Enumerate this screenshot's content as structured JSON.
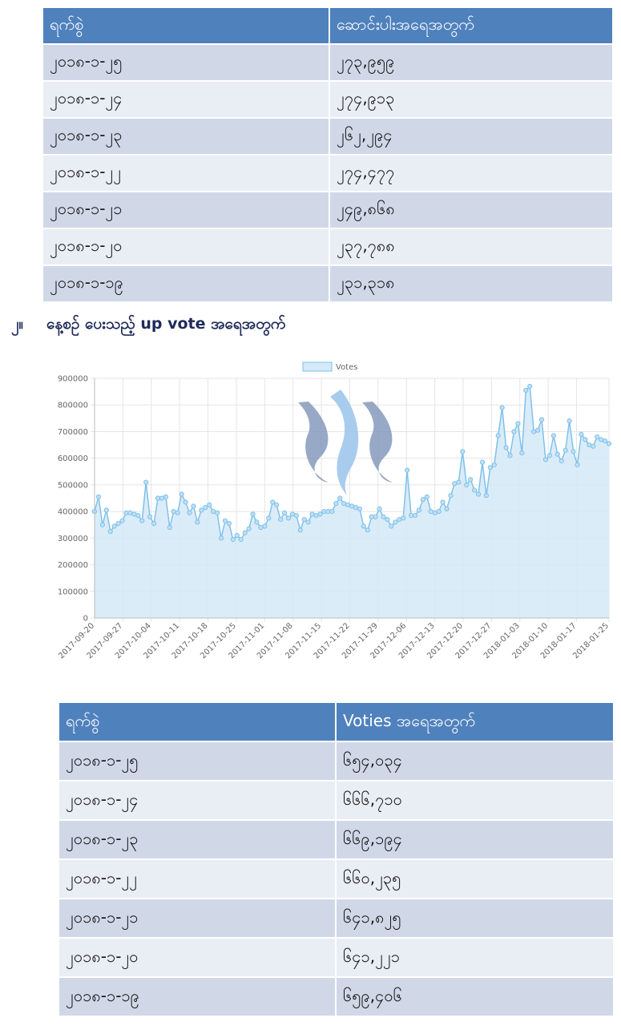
{
  "table1": {
    "headers": [
      "ရက်စွဲ",
      "ဆောင်းပါးအရေအတွက်"
    ],
    "rows": [
      [
        "၂၀၁၈-၁-၂၅",
        "၂၇၃,၉၅၉"
      ],
      [
        "၂၀၁၈-၁-၂၄",
        "၂၇၄,၉၁၃"
      ],
      [
        "၂၀၁၈-၁-၂၃",
        "၂၆၂,၂၉၄"
      ],
      [
        "၂၀၁၈-၁-၂၂",
        "၂၇၄,၄၇၇"
      ],
      [
        "၂၀၁၈-၁-၂၁",
        "၂၄၉,၈၆၈"
      ],
      [
        "၂၀၁၈-၁-၂၀",
        "၂၃၇,၇၈၈"
      ],
      [
        "၂၀၁၈-၁-၁၉",
        "၂၃၁,၃၁၈"
      ]
    ]
  },
  "section2": {
    "number": "၂။",
    "title": "နေ့စဉ် ပေးသည့် up vote အရေအတွက်"
  },
  "chart_data": {
    "type": "area",
    "series": [
      {
        "name": "Votes",
        "color": "#7ec1ea",
        "fill": "#d5e9f8"
      }
    ],
    "x_tick_labels": [
      "2017-09-20",
      "2017-09-27",
      "2017-10-04",
      "2017-10-11",
      "2017-10-18",
      "2017-10-25",
      "2017-11-01",
      "2017-11-08",
      "2017-11-15",
      "2017-11-22",
      "2017-11-29",
      "2017-12-06",
      "2017-12-13",
      "2017-12-20",
      "2017-12-27",
      "2018-01-03",
      "2018-01-10",
      "2018-01-17",
      "2018-01-25"
    ],
    "x_start": "2017-09-20",
    "x_end": "2018-01-25",
    "ylim": [
      0,
      900000
    ],
    "y_ticks": [
      0,
      100000,
      200000,
      300000,
      400000,
      500000,
      600000,
      700000,
      800000,
      900000
    ],
    "grid": true,
    "legend_position": "top-center",
    "values": [
      400000,
      455000,
      350000,
      405000,
      325000,
      345000,
      355000,
      365000,
      395000,
      395000,
      390000,
      385000,
      365000,
      510000,
      380000,
      355000,
      450000,
      450000,
      455000,
      340000,
      400000,
      395000,
      465000,
      435000,
      395000,
      420000,
      360000,
      405000,
      415000,
      425000,
      400000,
      395000,
      300000,
      365000,
      355000,
      295000,
      310000,
      295000,
      320000,
      335000,
      390000,
      360000,
      340000,
      345000,
      375000,
      435000,
      425000,
      370000,
      395000,
      375000,
      390000,
      385000,
      330000,
      370000,
      360000,
      390000,
      385000,
      390000,
      400000,
      400000,
      400000,
      430000,
      450000,
      430000,
      425000,
      420000,
      415000,
      410000,
      345000,
      330000,
      380000,
      380000,
      410000,
      380000,
      370000,
      345000,
      360000,
      370000,
      375000,
      555000,
      385000,
      385000,
      405000,
      445000,
      455000,
      400000,
      395000,
      400000,
      435000,
      410000,
      460000,
      505000,
      510000,
      625000,
      500000,
      520000,
      480000,
      465000,
      585000,
      460000,
      565000,
      575000,
      685000,
      790000,
      640000,
      610000,
      700000,
      730000,
      620000,
      855000,
      870000,
      700000,
      705000,
      745000,
      595000,
      610000,
      685000,
      615000,
      590000,
      630000,
      740000,
      625000,
      575000,
      690000,
      670000,
      650000,
      645000,
      680000,
      670000,
      665000,
      655000
    ]
  },
  "table2": {
    "headers": [
      "ရက်စွဲ",
      "Voties အရေအတွက်"
    ],
    "rows": [
      [
        "၂၀၁၈-၁-၂၅",
        "၆၅၄,၀၃၄"
      ],
      [
        "၂၀၁၈-၁-၂၄",
        "၆၆၆,၇၁၀"
      ],
      [
        "၂၀၁၈-၁-၂၃",
        "၆၆၉,၁၉၄"
      ],
      [
        "၂၀၁၈-၁-၂၂",
        "၆၆၀,၂၃၅"
      ],
      [
        "၂၀၁၈-၁-၂၁",
        "၆၄၁,၈၂၅"
      ],
      [
        "၂၀၁၈-၁-၂၀",
        "၆၄၁,၂၂၁"
      ],
      [
        "၂၀၁၈-၁-၁၉",
        "၆၅၉,၄၀၆"
      ]
    ]
  }
}
